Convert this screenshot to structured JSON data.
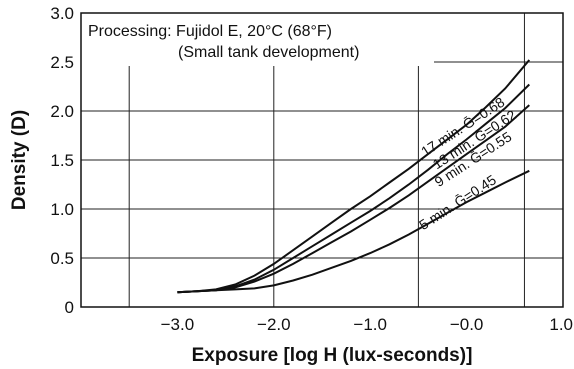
{
  "chart_data": {
    "type": "line",
    "xlabel": "Exposure [log H (lux-seconds)]",
    "ylabel": "Density (D)",
    "xlim": [
      -4.0,
      1.0
    ],
    "ylim": [
      0,
      3.0
    ],
    "x_ticks": [
      -3.0,
      -2.0,
      -1.0,
      0.0,
      1.0
    ],
    "x_tick_labels": [
      "−3.0",
      "−2.0",
      "−1.0",
      "−0.0",
      "1.0"
    ],
    "y_ticks": [
      0,
      0.5,
      1.0,
      1.5,
      2.0,
      2.5,
      3.0
    ],
    "y_tick_labels": [
      "0",
      "0.5",
      "1.0",
      "1.5",
      "2.0",
      "2.5",
      "3.0"
    ],
    "grid": true,
    "grid_x": [
      -3.5,
      -2.0,
      -0.5,
      0.6
    ],
    "grid_y": [
      0.5,
      1.0,
      1.5,
      2.0,
      2.5
    ],
    "annotation": {
      "line1": "Processing: Fujidol E, 20°C (68°F)",
      "line2": "(Small tank development)"
    },
    "series": [
      {
        "name": "17 min. Ḡ=0.68",
        "x": [
          -3.0,
          -2.8,
          -2.6,
          -2.4,
          -2.2,
          -2.0,
          -1.8,
          -1.6,
          -1.4,
          -1.2,
          -1.0,
          -0.8,
          -0.6,
          -0.4,
          -0.2,
          0.0,
          0.2,
          0.4,
          0.65
        ],
        "y": [
          0.15,
          0.16,
          0.18,
          0.23,
          0.32,
          0.44,
          0.58,
          0.72,
          0.86,
          1.0,
          1.13,
          1.27,
          1.41,
          1.56,
          1.71,
          1.86,
          2.04,
          2.23,
          2.52
        ]
      },
      {
        "name": "13 min. Ḡ=0.62",
        "x": [
          -3.0,
          -2.8,
          -2.6,
          -2.4,
          -2.2,
          -2.0,
          -1.8,
          -1.6,
          -1.4,
          -1.2,
          -1.0,
          -0.8,
          -0.6,
          -0.4,
          -0.2,
          0.0,
          0.2,
          0.4,
          0.65
        ],
        "y": [
          0.15,
          0.16,
          0.17,
          0.21,
          0.28,
          0.38,
          0.5,
          0.62,
          0.74,
          0.86,
          0.98,
          1.11,
          1.25,
          1.4,
          1.56,
          1.71,
          1.87,
          2.03,
          2.27
        ]
      },
      {
        "name": "9 min. Ḡ=0.55",
        "x": [
          -3.0,
          -2.8,
          -2.6,
          -2.4,
          -2.2,
          -2.0,
          -1.8,
          -1.6,
          -1.4,
          -1.2,
          -1.0,
          -0.8,
          -0.6,
          -0.4,
          -0.2,
          0.0,
          0.2,
          0.4,
          0.65
        ],
        "y": [
          0.15,
          0.16,
          0.17,
          0.2,
          0.26,
          0.34,
          0.44,
          0.55,
          0.66,
          0.77,
          0.89,
          1.01,
          1.14,
          1.28,
          1.42,
          1.56,
          1.7,
          1.84,
          2.06
        ]
      },
      {
        "name": "5 min. Ḡ=0.45",
        "x": [
          -3.0,
          -2.8,
          -2.6,
          -2.4,
          -2.2,
          -2.0,
          -1.8,
          -1.6,
          -1.4,
          -1.2,
          -1.0,
          -0.8,
          -0.6,
          -0.4,
          -0.2,
          0.0,
          0.2,
          0.4,
          0.65
        ],
        "y": [
          0.15,
          0.16,
          0.17,
          0.18,
          0.19,
          0.22,
          0.27,
          0.33,
          0.4,
          0.47,
          0.55,
          0.64,
          0.74,
          0.85,
          0.96,
          1.07,
          1.17,
          1.27,
          1.39
        ]
      }
    ]
  }
}
